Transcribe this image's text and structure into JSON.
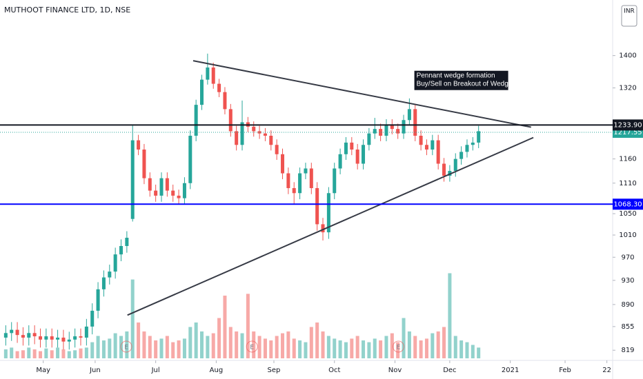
{
  "chart_data": {
    "type": "candlestick",
    "title": "MUTHOOT FINANCE LTD, 1D, NSE",
    "currency": "INR",
    "log": true,
    "ylim": [
      807,
      1549
    ],
    "xlim": [
      -1,
      105.25
    ],
    "yticks": [
      1400,
      1320,
      1160,
      1110,
      1050,
      1010,
      970,
      930,
      890,
      855,
      819
    ],
    "xticks": [
      {
        "value": 6.5,
        "label": "May"
      },
      {
        "value": 15.5,
        "label": "Jun"
      },
      {
        "value": 26,
        "label": "Jul"
      },
      {
        "value": 36.5,
        "label": "Aug"
      },
      {
        "value": 46.5,
        "label": "Sep"
      },
      {
        "value": 57,
        "label": "Oct"
      },
      {
        "value": 67.5,
        "label": "Nov"
      },
      {
        "value": 77,
        "label": "Dec"
      },
      {
        "value": 87.5,
        "label": "2021"
      },
      {
        "value": 97,
        "label": "Feb"
      },
      {
        "value": 104.25,
        "label": "22"
      }
    ],
    "up_color": "#26a69a",
    "down_color": "#ef5350",
    "volume_ylim": [
      0,
      100
    ],
    "open": [
      838,
      845,
      850,
      842,
      838,
      845,
      840,
      835,
      840,
      835,
      838,
      832,
      835,
      840,
      838,
      855,
      880,
      915,
      935,
      945,
      975,
      990,
      1040,
      1200,
      1180,
      1120,
      1095,
      1085,
      1120,
      1095,
      1085,
      1080,
      1110,
      1210,
      1280,
      1340,
      1370,
      1330,
      1310,
      1270,
      1220,
      1190,
      1240,
      1230,
      1220,
      1215,
      1210,
      1190,
      1170,
      1130,
      1100,
      1090,
      1130,
      1140,
      1100,
      1030,
      1015,
      1090,
      1140,
      1170,
      1195,
      1180,
      1150,
      1190,
      1215,
      1225,
      1210,
      1235,
      1225,
      1215,
      1245,
      1270,
      1210,
      1190,
      1180,
      1200,
      1150,
      1125,
      1135,
      1160,
      1175,
      1190,
      1195
    ],
    "high": [
      857,
      862,
      862,
      854,
      857,
      857,
      852,
      852,
      852,
      850,
      850,
      847,
      852,
      852,
      867,
      892,
      927,
      947,
      957,
      987,
      1002,
      1017,
      1235,
      1212,
      1192,
      1132,
      1107,
      1132,
      1132,
      1107,
      1097,
      1122,
      1222,
      1292,
      1352,
      1405,
      1382,
      1342,
      1322,
      1282,
      1232,
      1290,
      1252,
      1242,
      1232,
      1227,
      1222,
      1202,
      1182,
      1142,
      1112,
      1142,
      1152,
      1152,
      1112,
      1042,
      1102,
      1152,
      1182,
      1207,
      1207,
      1192,
      1202,
      1227,
      1250,
      1237,
      1247,
      1247,
      1237,
      1257,
      1295,
      1282,
      1222,
      1202,
      1212,
      1212,
      1162,
      1147,
      1172,
      1187,
      1202,
      1207,
      1232
    ],
    "low": [
      826,
      833,
      830,
      826,
      826,
      828,
      823,
      823,
      823,
      823,
      820,
      820,
      823,
      826,
      826,
      843,
      868,
      903,
      923,
      933,
      963,
      978,
      1035,
      1168,
      1108,
      1083,
      1073,
      1073,
      1083,
      1073,
      1068,
      1068,
      1098,
      1198,
      1268,
      1328,
      1318,
      1298,
      1258,
      1208,
      1178,
      1178,
      1218,
      1208,
      1203,
      1198,
      1178,
      1158,
      1118,
      1088,
      1068,
      1078,
      1118,
      1088,
      1018,
      1000,
      1003,
      1078,
      1128,
      1158,
      1168,
      1138,
      1138,
      1178,
      1203,
      1198,
      1198,
      1213,
      1203,
      1203,
      1233,
      1198,
      1178,
      1168,
      1168,
      1138,
      1113,
      1113,
      1123,
      1148,
      1163,
      1178,
      1183
    ],
    "close": [
      845,
      850,
      842,
      838,
      845,
      840,
      835,
      840,
      835,
      838,
      832,
      835,
      840,
      838,
      855,
      880,
      915,
      935,
      945,
      975,
      990,
      1005,
      1200,
      1180,
      1120,
      1095,
      1085,
      1120,
      1095,
      1085,
      1080,
      1110,
      1210,
      1280,
      1340,
      1370,
      1330,
      1310,
      1270,
      1220,
      1190,
      1240,
      1230,
      1220,
      1215,
      1210,
      1190,
      1170,
      1130,
      1100,
      1090,
      1130,
      1140,
      1100,
      1030,
      1015,
      1090,
      1140,
      1170,
      1195,
      1180,
      1150,
      1190,
      1215,
      1225,
      1210,
      1235,
      1225,
      1215,
      1245,
      1270,
      1210,
      1190,
      1180,
      1200,
      1150,
      1125,
      1135,
      1160,
      1175,
      1190,
      1195,
      1220
    ],
    "volume": [
      10,
      12,
      8,
      9,
      12,
      10,
      8,
      11,
      9,
      12,
      10,
      8,
      9,
      11,
      12,
      18,
      25,
      20,
      22,
      28,
      25,
      30,
      88,
      40,
      30,
      25,
      20,
      22,
      25,
      18,
      20,
      22,
      35,
      40,
      30,
      25,
      28,
      45,
      70,
      35,
      30,
      28,
      72,
      30,
      25,
      22,
      20,
      25,
      28,
      30,
      22,
      20,
      18,
      35,
      40,
      30,
      25,
      22,
      20,
      18,
      22,
      25,
      20,
      18,
      22,
      20,
      25,
      28,
      18,
      45,
      30,
      25,
      20,
      22,
      28,
      30,
      35,
      95,
      25,
      20,
      18,
      15,
      12
    ],
    "levels": [
      {
        "value": 1233.9,
        "label": "1233.90",
        "color": "#131722"
      },
      {
        "value": 1068.3,
        "label": "1068.30",
        "color": "#0000ff"
      }
    ],
    "last_price": {
      "value": 1217.55,
      "label": "1217.55",
      "color": "#26a69a"
    },
    "trendlines": [
      {
        "x": [
          32.5,
          91.1
        ],
        "y": [
          1387,
          1229
        ]
      },
      {
        "x": [
          21.1,
          91.5
        ],
        "y": [
          873,
          1206
        ]
      }
    ],
    "events": [
      {
        "x": 20.9,
        "label": "E"
      },
      {
        "x": 42.7,
        "label": "E"
      },
      {
        "x": 68.1,
        "label": "E"
      }
    ],
    "annotation": {
      "x": 71.1,
      "y": 1355,
      "lines": [
        "Pennant wedge formation",
        "Buy/Sell on Breakout of Wedge"
      ]
    }
  }
}
